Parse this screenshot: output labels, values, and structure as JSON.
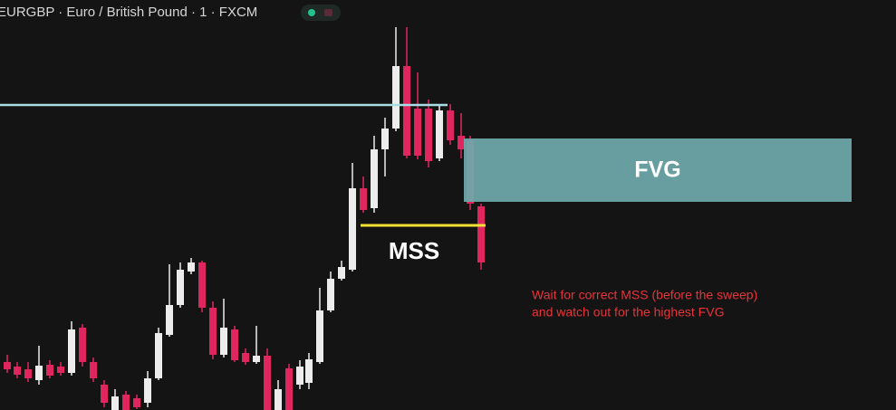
{
  "header": {
    "title": "EURGBP · Euro / British Pound · 1 · FXCM"
  },
  "labels": {
    "fvg": "FVG",
    "mss": "MSS"
  },
  "annotation": {
    "lines": [
      "Wait for correct MSS (before the sweep)",
      "and watch out for the highest FVG"
    ]
  }
}
